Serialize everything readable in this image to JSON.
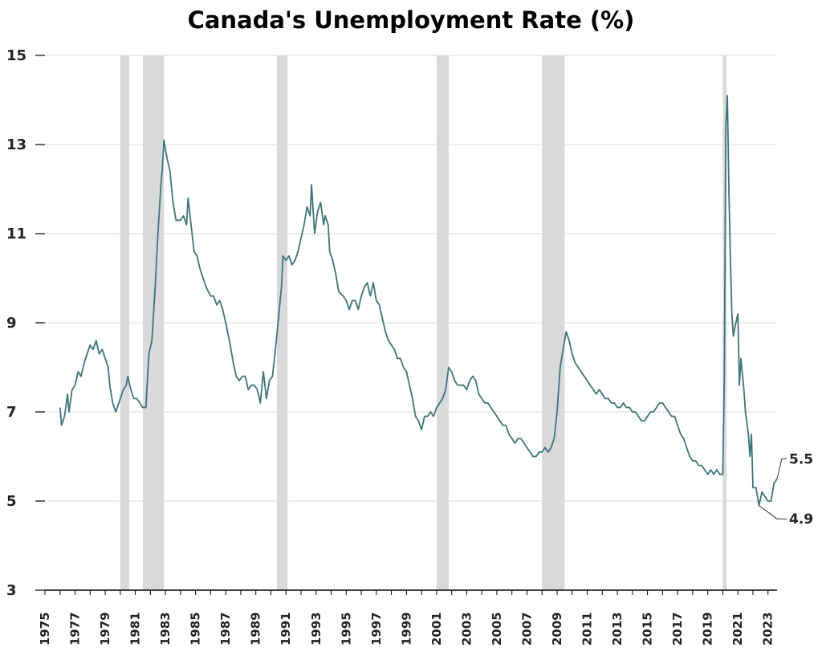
{
  "chart_data": {
    "type": "line",
    "title": "Canada's Unemployment Rate (%)",
    "xlabel": "",
    "ylabel": "",
    "xlim": [
      1975,
      2023.6
    ],
    "ylim": [
      3,
      15
    ],
    "y_ticks": [
      3,
      5,
      7,
      9,
      11,
      13,
      15
    ],
    "x_ticks": [
      "1975",
      "1977",
      "1979",
      "1981",
      "1983",
      "1985",
      "1987",
      "1989",
      "1991",
      "1993",
      "1995",
      "1997",
      "1999",
      "2001",
      "2003",
      "2005",
      "2007",
      "2009",
      "2011",
      "2013",
      "2015",
      "2017",
      "2019",
      "2021",
      "2023"
    ],
    "grid": "horizontal",
    "line_color": "#3f7478",
    "band_color": "#d9d9d9",
    "recessions": [
      {
        "start": 1980.0,
        "end": 1980.6
      },
      {
        "start": 1981.5,
        "end": 1982.9
      },
      {
        "start": 1990.4,
        "end": 1991.1
      },
      {
        "start": 2001.0,
        "end": 2001.8
      },
      {
        "start": 2008.0,
        "end": 2009.5
      },
      {
        "start": 2020.0,
        "end": 2020.25
      }
    ],
    "series": [
      {
        "values": [
          [
            1976.0,
            7.1
          ],
          [
            1976.1,
            6.7
          ],
          [
            1976.3,
            6.9
          ],
          [
            1976.5,
            7.4
          ],
          [
            1976.6,
            7.0
          ],
          [
            1976.8,
            7.5
          ],
          [
            1977.0,
            7.6
          ],
          [
            1977.2,
            7.9
          ],
          [
            1977.4,
            7.8
          ],
          [
            1977.6,
            8.1
          ],
          [
            1977.8,
            8.3
          ],
          [
            1978.0,
            8.5
          ],
          [
            1978.2,
            8.4
          ],
          [
            1978.4,
            8.6
          ],
          [
            1978.6,
            8.3
          ],
          [
            1978.8,
            8.4
          ],
          [
            1979.0,
            8.2
          ],
          [
            1979.2,
            8.0
          ],
          [
            1979.3,
            7.6
          ],
          [
            1979.5,
            7.2
          ],
          [
            1979.7,
            7.0
          ],
          [
            1979.9,
            7.2
          ],
          [
            1980.2,
            7.5
          ],
          [
            1980.4,
            7.6
          ],
          [
            1980.5,
            7.8
          ],
          [
            1980.7,
            7.5
          ],
          [
            1980.9,
            7.3
          ],
          [
            1981.1,
            7.3
          ],
          [
            1981.3,
            7.2
          ],
          [
            1981.5,
            7.1
          ],
          [
            1981.7,
            7.1
          ],
          [
            1981.9,
            8.3
          ],
          [
            1982.1,
            8.6
          ],
          [
            1982.3,
            9.7
          ],
          [
            1982.5,
            11.0
          ],
          [
            1982.7,
            12.1
          ],
          [
            1982.8,
            12.5
          ],
          [
            1982.9,
            13.1
          ],
          [
            1983.1,
            12.7
          ],
          [
            1983.3,
            12.4
          ],
          [
            1983.5,
            11.7
          ],
          [
            1983.7,
            11.3
          ],
          [
            1984.0,
            11.3
          ],
          [
            1984.2,
            11.4
          ],
          [
            1984.4,
            11.2
          ],
          [
            1984.5,
            11.8
          ],
          [
            1984.7,
            11.2
          ],
          [
            1984.9,
            10.6
          ],
          [
            1985.1,
            10.5
          ],
          [
            1985.3,
            10.2
          ],
          [
            1985.5,
            10.0
          ],
          [
            1985.7,
            9.8
          ],
          [
            1986.0,
            9.6
          ],
          [
            1986.2,
            9.6
          ],
          [
            1986.4,
            9.4
          ],
          [
            1986.6,
            9.5
          ],
          [
            1986.8,
            9.3
          ],
          [
            1987.0,
            9.0
          ],
          [
            1987.3,
            8.5
          ],
          [
            1987.5,
            8.1
          ],
          [
            1987.7,
            7.8
          ],
          [
            1987.9,
            7.7
          ],
          [
            1988.1,
            7.8
          ],
          [
            1988.3,
            7.8
          ],
          [
            1988.5,
            7.5
          ],
          [
            1988.7,
            7.6
          ],
          [
            1988.9,
            7.6
          ],
          [
            1989.1,
            7.5
          ],
          [
            1989.3,
            7.2
          ],
          [
            1989.5,
            7.9
          ],
          [
            1989.7,
            7.3
          ],
          [
            1989.9,
            7.7
          ],
          [
            1990.1,
            7.8
          ],
          [
            1990.3,
            8.4
          ],
          [
            1990.5,
            9.1
          ],
          [
            1990.7,
            9.8
          ],
          [
            1990.8,
            10.5
          ],
          [
            1991.0,
            10.4
          ],
          [
            1991.2,
            10.5
          ],
          [
            1991.4,
            10.3
          ],
          [
            1991.6,
            10.4
          ],
          [
            1991.8,
            10.6
          ],
          [
            1992.0,
            10.9
          ],
          [
            1992.2,
            11.2
          ],
          [
            1992.4,
            11.6
          ],
          [
            1992.6,
            11.4
          ],
          [
            1992.7,
            12.1
          ],
          [
            1992.9,
            11.0
          ],
          [
            1993.1,
            11.5
          ],
          [
            1993.3,
            11.7
          ],
          [
            1993.5,
            11.2
          ],
          [
            1993.6,
            11.4
          ],
          [
            1993.8,
            11.2
          ],
          [
            1993.9,
            10.6
          ],
          [
            1994.1,
            10.4
          ],
          [
            1994.3,
            10.1
          ],
          [
            1994.5,
            9.7
          ],
          [
            1994.8,
            9.6
          ],
          [
            1995.0,
            9.5
          ],
          [
            1995.2,
            9.3
          ],
          [
            1995.4,
            9.5
          ],
          [
            1995.6,
            9.5
          ],
          [
            1995.8,
            9.3
          ],
          [
            1996.0,
            9.6
          ],
          [
            1996.2,
            9.8
          ],
          [
            1996.4,
            9.9
          ],
          [
            1996.6,
            9.6
          ],
          [
            1996.8,
            9.9
          ],
          [
            1997.0,
            9.5
          ],
          [
            1997.2,
            9.4
          ],
          [
            1997.4,
            9.1
          ],
          [
            1997.6,
            8.8
          ],
          [
            1997.8,
            8.6
          ],
          [
            1998.0,
            8.5
          ],
          [
            1998.2,
            8.4
          ],
          [
            1998.4,
            8.2
          ],
          [
            1998.6,
            8.2
          ],
          [
            1998.8,
            8.0
          ],
          [
            1999.0,
            7.9
          ],
          [
            1999.2,
            7.6
          ],
          [
            1999.4,
            7.3
          ],
          [
            1999.6,
            6.9
          ],
          [
            1999.8,
            6.8
          ],
          [
            2000.0,
            6.6
          ],
          [
            2000.2,
            6.9
          ],
          [
            2000.4,
            6.9
          ],
          [
            2000.6,
            7.0
          ],
          [
            2000.8,
            6.9
          ],
          [
            2001.0,
            7.1
          ],
          [
            2001.2,
            7.2
          ],
          [
            2001.4,
            7.3
          ],
          [
            2001.6,
            7.5
          ],
          [
            2001.8,
            8.0
          ],
          [
            2002.0,
            7.9
          ],
          [
            2002.2,
            7.7
          ],
          [
            2002.4,
            7.6
          ],
          [
            2002.6,
            7.6
          ],
          [
            2002.8,
            7.6
          ],
          [
            2003.0,
            7.5
          ],
          [
            2003.2,
            7.7
          ],
          [
            2003.4,
            7.8
          ],
          [
            2003.6,
            7.7
          ],
          [
            2003.8,
            7.4
          ],
          [
            2004.0,
            7.3
          ],
          [
            2004.2,
            7.2
          ],
          [
            2004.4,
            7.2
          ],
          [
            2004.6,
            7.1
          ],
          [
            2004.8,
            7.0
          ],
          [
            2005.0,
            6.9
          ],
          [
            2005.2,
            6.8
          ],
          [
            2005.4,
            6.7
          ],
          [
            2005.6,
            6.7
          ],
          [
            2005.8,
            6.5
          ],
          [
            2006.0,
            6.4
          ],
          [
            2006.2,
            6.3
          ],
          [
            2006.4,
            6.4
          ],
          [
            2006.6,
            6.4
          ],
          [
            2006.8,
            6.3
          ],
          [
            2007.0,
            6.2
          ],
          [
            2007.2,
            6.1
          ],
          [
            2007.4,
            6.0
          ],
          [
            2007.6,
            6.0
          ],
          [
            2007.8,
            6.1
          ],
          [
            2008.0,
            6.1
          ],
          [
            2008.2,
            6.2
          ],
          [
            2008.4,
            6.1
          ],
          [
            2008.6,
            6.2
          ],
          [
            2008.8,
            6.4
          ],
          [
            2009.0,
            7.0
          ],
          [
            2009.2,
            8.0
          ],
          [
            2009.4,
            8.4
          ],
          [
            2009.6,
            8.8
          ],
          [
            2009.8,
            8.6
          ],
          [
            2010.0,
            8.3
          ],
          [
            2010.2,
            8.1
          ],
          [
            2010.4,
            8.0
          ],
          [
            2010.6,
            7.9
          ],
          [
            2010.8,
            7.8
          ],
          [
            2011.0,
            7.7
          ],
          [
            2011.2,
            7.6
          ],
          [
            2011.4,
            7.5
          ],
          [
            2011.6,
            7.4
          ],
          [
            2011.8,
            7.5
          ],
          [
            2012.0,
            7.4
          ],
          [
            2012.2,
            7.3
          ],
          [
            2012.4,
            7.3
          ],
          [
            2012.6,
            7.2
          ],
          [
            2012.8,
            7.2
          ],
          [
            2013.0,
            7.1
          ],
          [
            2013.2,
            7.1
          ],
          [
            2013.4,
            7.2
          ],
          [
            2013.6,
            7.1
          ],
          [
            2013.8,
            7.1
          ],
          [
            2014.0,
            7.0
          ],
          [
            2014.2,
            7.0
          ],
          [
            2014.4,
            6.9
          ],
          [
            2014.6,
            6.8
          ],
          [
            2014.8,
            6.8
          ],
          [
            2015.0,
            6.9
          ],
          [
            2015.2,
            7.0
          ],
          [
            2015.4,
            7.0
          ],
          [
            2015.6,
            7.1
          ],
          [
            2015.8,
            7.2
          ],
          [
            2016.0,
            7.2
          ],
          [
            2016.2,
            7.1
          ],
          [
            2016.4,
            7.0
          ],
          [
            2016.6,
            6.9
          ],
          [
            2016.8,
            6.9
          ],
          [
            2017.0,
            6.7
          ],
          [
            2017.2,
            6.5
          ],
          [
            2017.4,
            6.4
          ],
          [
            2017.6,
            6.2
          ],
          [
            2017.8,
            6.0
          ],
          [
            2018.0,
            5.9
          ],
          [
            2018.2,
            5.9
          ],
          [
            2018.4,
            5.8
          ],
          [
            2018.6,
            5.8
          ],
          [
            2018.8,
            5.7
          ],
          [
            2019.0,
            5.6
          ],
          [
            2019.2,
            5.7
          ],
          [
            2019.4,
            5.6
          ],
          [
            2019.6,
            5.7
          ],
          [
            2019.8,
            5.6
          ],
          [
            2020.0,
            5.6
          ],
          [
            2020.1,
            7.8
          ],
          [
            2020.2,
            13.4
          ],
          [
            2020.3,
            14.1
          ],
          [
            2020.4,
            12.0
          ],
          [
            2020.5,
            10.5
          ],
          [
            2020.6,
            9.2
          ],
          [
            2020.7,
            8.7
          ],
          [
            2020.8,
            8.9
          ],
          [
            2021.0,
            9.2
          ],
          [
            2021.1,
            7.6
          ],
          [
            2021.2,
            8.2
          ],
          [
            2021.4,
            7.5
          ],
          [
            2021.5,
            7.0
          ],
          [
            2021.7,
            6.5
          ],
          [
            2021.8,
            6.0
          ],
          [
            2021.9,
            6.5
          ],
          [
            2022.0,
            5.3
          ],
          [
            2022.2,
            5.3
          ],
          [
            2022.4,
            4.9
          ],
          [
            2022.6,
            5.2
          ],
          [
            2022.8,
            5.1
          ],
          [
            2023.0,
            5.0
          ],
          [
            2023.2,
            5.0
          ],
          [
            2023.4,
            5.4
          ],
          [
            2023.6,
            5.5
          ]
        ]
      }
    ],
    "annotations": [
      {
        "label": "5.5",
        "x": 2023.6,
        "y": 5.5
      },
      {
        "label": "4.9",
        "x": 2022.4,
        "y": 4.9
      }
    ]
  }
}
